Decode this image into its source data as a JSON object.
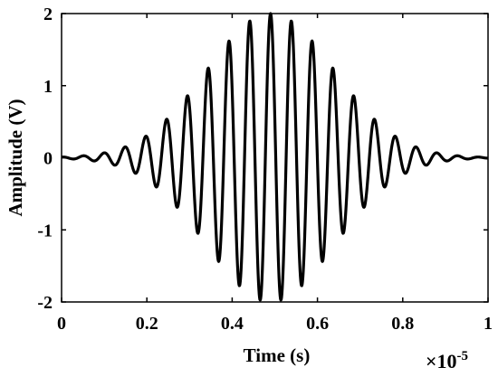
{
  "chart_data": {
    "type": "line",
    "title": "",
    "xlabel": "Time (s)",
    "ylabel": "Amplitude (V)",
    "x_exponent_base": "×10",
    "x_exponent_power": "-5",
    "xlim": [
      0,
      1
    ],
    "ylim": [
      -2,
      2
    ],
    "x_ticks": [
      "0",
      "0.2",
      "0.4",
      "0.6",
      "0.8",
      "1"
    ],
    "y_ticks": [
      "-2",
      "-1",
      "0",
      "1",
      "2"
    ],
    "grid": false,
    "line_color": "#000000",
    "series": [
      {
        "waveform": "gaussian-windowed sinusoid (tone burst)",
        "peak_amplitude": 2.0,
        "center_x": 0.49,
        "gaussian_sigma_x": 0.15,
        "carrier_cycles_per_unit_x": 20.5,
        "phase_rad": 0.0
      }
    ]
  }
}
